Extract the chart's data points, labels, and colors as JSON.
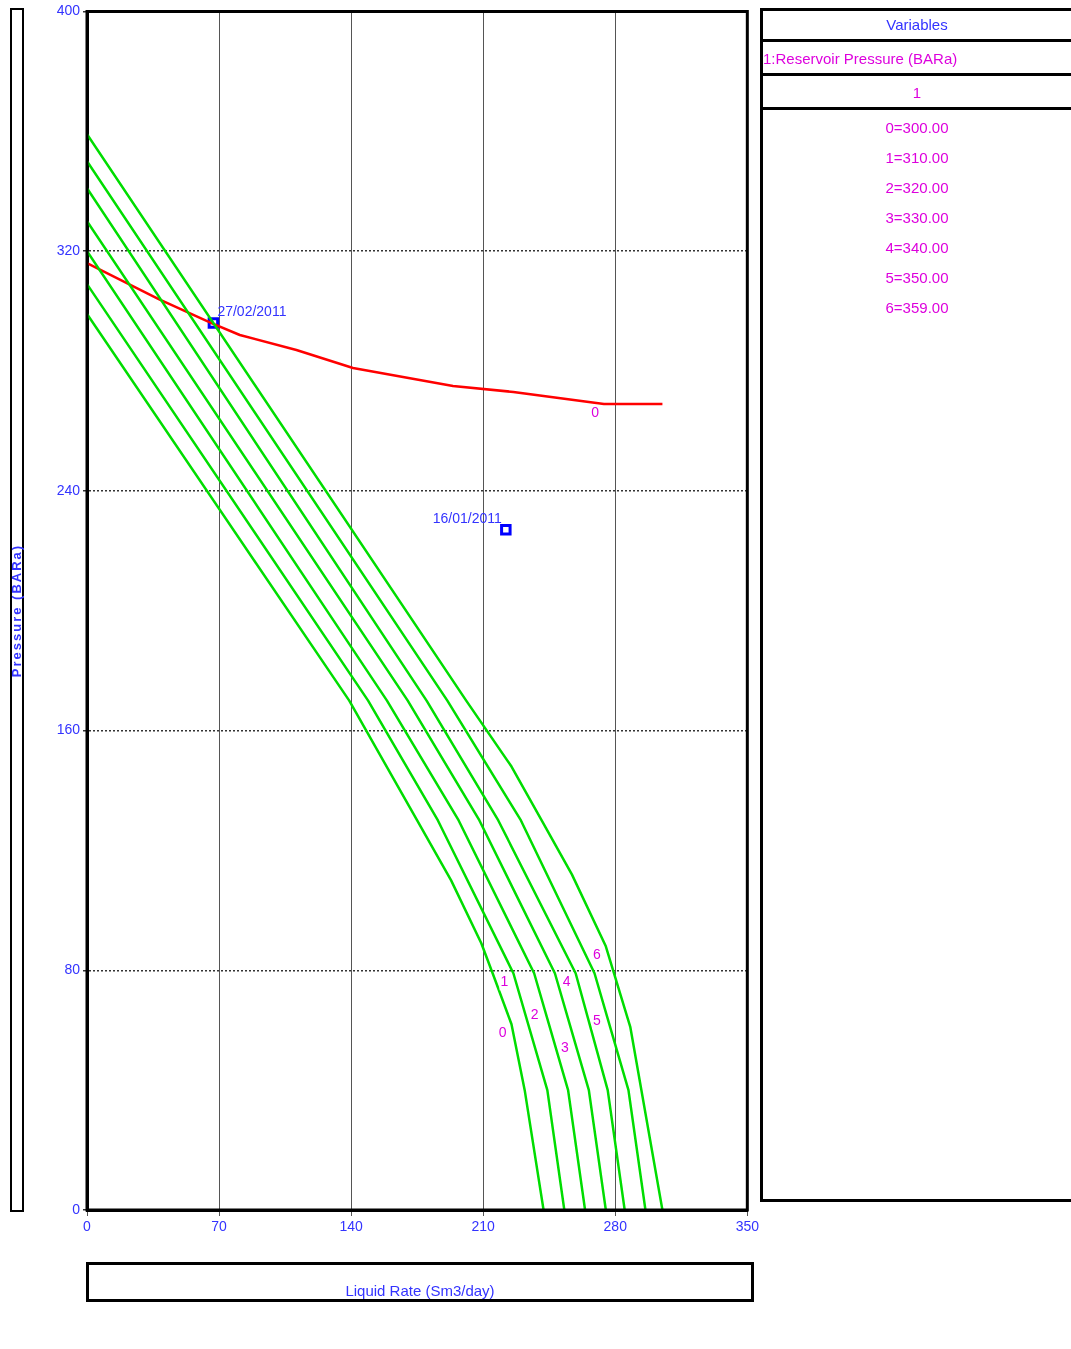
{
  "chart_data": {
    "type": "line",
    "xlabel": "Liquid Rate (Sm3/day)",
    "ylabel": "Pressure (BARa)",
    "xlim": [
      0,
      350
    ],
    "xticks": [
      0,
      70,
      140,
      210,
      280,
      350
    ],
    "ylim": [
      0,
      400
    ],
    "yticks": [
      0,
      80,
      160,
      240,
      320,
      400
    ],
    "grid": true,
    "marker": "none",
    "line_style": "solid",
    "series": [
      {
        "color": "#00dd00",
        "x": [
          0,
          139,
          175,
          193,
          209,
          215,
          225,
          232,
          242
        ],
        "values": [
          299,
          170,
          130,
          110,
          89,
          79,
          62,
          40,
          0
        ]
      },
      {
        "color": "#00dd00",
        "x": [
          0,
          149,
          186,
          226,
          244,
          253
        ],
        "values": [
          309,
          170,
          130,
          79,
          40,
          0
        ]
      },
      {
        "color": "#00dd00",
        "x": [
          0,
          159,
          197,
          237,
          255,
          264
        ],
        "values": [
          320,
          170,
          130,
          79,
          40,
          0
        ]
      },
      {
        "color": "#00dd00",
        "x": [
          0,
          170,
          208,
          248,
          266,
          275
        ],
        "values": [
          330,
          170,
          130,
          79,
          40,
          0
        ]
      },
      {
        "color": "#00dd00",
        "x": [
          0,
          180,
          218,
          259,
          276,
          285
        ],
        "values": [
          341,
          170,
          130,
          79,
          40,
          0
        ]
      },
      {
        "color": "#00dd00",
        "x": [
          0,
          191,
          230,
          269,
          287,
          296
        ],
        "values": [
          350,
          170,
          130,
          79,
          40,
          0
        ]
      },
      {
        "color": "#00dd00",
        "x": [
          0,
          201,
          225,
          241,
          257,
          275,
          288,
          305
        ],
        "values": [
          359,
          170,
          148,
          130,
          112,
          88,
          61,
          0
        ]
      },
      {
        "color": "#ff0000",
        "x": [
          0,
          38,
          66,
          81,
          111,
          141,
          194,
          226,
          274,
          305
        ],
        "values": [
          316,
          304,
          296,
          292,
          287,
          281,
          275,
          273,
          269,
          269
        ]
      },
      {
        "type": "scatter",
        "marker": "square",
        "color": "#0000ff",
        "x": [
          67,
          222
        ],
        "values": [
          296,
          227
        ]
      }
    ],
    "annotations": [
      "Variables",
      "1:Reservoir Pressure (BARa)",
      "1",
      "0=300.00",
      "1=310.00",
      "2=320.00",
      "3=330.00",
      "4=340.00",
      "5=350.00",
      "6=359.00",
      {
        "text": "27/02/2011",
        "x": 67,
        "y": 296
      },
      {
        "text": "16/01/2011",
        "x": 222,
        "y": 227
      },
      {
        "text": "0",
        "x": 225,
        "y": 62
      },
      {
        "text": "1",
        "x": 226,
        "y": 79
      },
      {
        "text": "2",
        "x": 242,
        "y": 68
      },
      {
        "text": "3",
        "x": 258,
        "y": 57
      },
      {
        "text": "4",
        "x": 259,
        "y": 79
      },
      {
        "text": "5",
        "x": 275,
        "y": 66
      },
      {
        "text": "6",
        "x": 275,
        "y": 88
      },
      {
        "text": "0",
        "x": 274,
        "y": 269
      }
    ]
  }
}
